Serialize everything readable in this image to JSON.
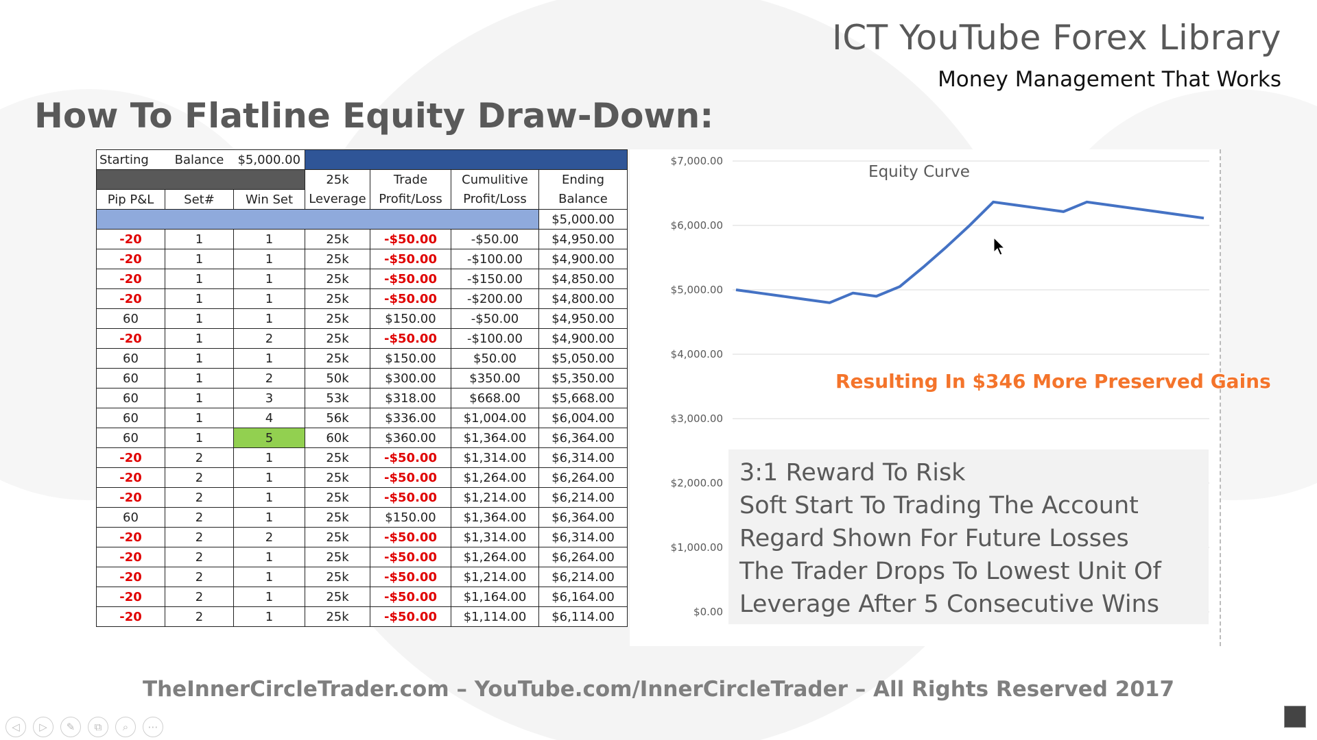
{
  "header": {
    "brand_title": "ICT YouTube Forex Library",
    "brand_subtitle": "Money Management That Works",
    "slide_title": "How To Flatline Equity Draw-Down:"
  },
  "ledger": {
    "starting_label_1": "Starting",
    "starting_label_2": "Balance",
    "starting_value": "$5,000.00",
    "columns": {
      "c1": "Pip P&L",
      "c2": "Set#",
      "c3": "Win Set",
      "c4a": "25k",
      "c4b": "Leverage",
      "c5a": "Trade",
      "c5b": "Profit/Loss",
      "c6a": "Cumulitive",
      "c6b": "Profit/Loss",
      "c7a": "Ending",
      "c7b": "Balance"
    },
    "opening_balance": "$5,000.00",
    "rows": [
      [
        "-20",
        "1",
        "1",
        "25k",
        "-$50.00",
        "-$50.00",
        "$4,950.00"
      ],
      [
        "-20",
        "1",
        "1",
        "25k",
        "-$50.00",
        "-$100.00",
        "$4,900.00"
      ],
      [
        "-20",
        "1",
        "1",
        "25k",
        "-$50.00",
        "-$150.00",
        "$4,850.00"
      ],
      [
        "-20",
        "1",
        "1",
        "25k",
        "-$50.00",
        "-$200.00",
        "$4,800.00"
      ],
      [
        "60",
        "1",
        "1",
        "25k",
        "$150.00",
        "-$50.00",
        "$4,950.00"
      ],
      [
        "-20",
        "1",
        "2",
        "25k",
        "-$50.00",
        "-$100.00",
        "$4,900.00"
      ],
      [
        "60",
        "1",
        "1",
        "25k",
        "$150.00",
        "$50.00",
        "$5,050.00"
      ],
      [
        "60",
        "1",
        "2",
        "50k",
        "$300.00",
        "$350.00",
        "$5,350.00"
      ],
      [
        "60",
        "1",
        "3",
        "53k",
        "$318.00",
        "$668.00",
        "$5,668.00"
      ],
      [
        "60",
        "1",
        "4",
        "56k",
        "$336.00",
        "$1,004.00",
        "$6,004.00"
      ],
      [
        "60",
        "1",
        "5",
        "60k",
        "$360.00",
        "$1,364.00",
        "$6,364.00"
      ],
      [
        "-20",
        "2",
        "1",
        "25k",
        "-$50.00",
        "$1,314.00",
        "$6,314.00"
      ],
      [
        "-20",
        "2",
        "1",
        "25k",
        "-$50.00",
        "$1,264.00",
        "$6,264.00"
      ],
      [
        "-20",
        "2",
        "1",
        "25k",
        "-$50.00",
        "$1,214.00",
        "$6,214.00"
      ],
      [
        "60",
        "2",
        "1",
        "25k",
        "$150.00",
        "$1,364.00",
        "$6,364.00"
      ],
      [
        "-20",
        "2",
        "2",
        "25k",
        "-$50.00",
        "$1,314.00",
        "$6,314.00"
      ],
      [
        "-20",
        "2",
        "1",
        "25k",
        "-$50.00",
        "$1,264.00",
        "$6,264.00"
      ],
      [
        "-20",
        "2",
        "1",
        "25k",
        "-$50.00",
        "$1,214.00",
        "$6,214.00"
      ],
      [
        "-20",
        "2",
        "1",
        "25k",
        "-$50.00",
        "$1,164.00",
        "$6,164.00"
      ],
      [
        "-20",
        "2",
        "1",
        "25k",
        "-$50.00",
        "$1,114.00",
        "$6,114.00"
      ]
    ],
    "highlight_win_row": 10,
    "colors": {
      "negative": "#e00000",
      "highlight": "#92d050",
      "header_blue": "#2f5597",
      "row_blue": "#8faadc"
    }
  },
  "chart_data": {
    "type": "line",
    "title": "Equity Curve",
    "y_ticks": [
      "$7,000.00",
      "$6,000.00",
      "$5,000.00",
      "$4,000.00",
      "$3,000.00",
      "$2,000.00",
      "$1,000.00",
      "$0.00"
    ],
    "ylim": [
      0,
      7000
    ],
    "series": [
      {
        "values": [
          5000,
          4950,
          4900,
          4850,
          4800,
          4950,
          4900,
          5050,
          5350,
          5668,
          6004,
          6364,
          6314,
          6264,
          6214,
          6364,
          6314,
          6264,
          6214,
          6164,
          6114
        ],
        "color": "#4472c4"
      }
    ],
    "grid": true
  },
  "callout": "Resulting In $346 More Preserved Gains",
  "notes": [
    "3:1 Reward To Risk",
    "Soft Start To Trading The Account",
    "Regard Shown For Future Losses",
    "The Trader Drops To Lowest Unit Of",
    "Leverage After 5 Consecutive Wins"
  ],
  "footer": "TheInnerCircleTrader.com – YouTube.com/InnerCircleTrader – All Rights Reserved 2017",
  "player_controls": [
    "◁",
    "▷",
    "✎",
    "⧉",
    "⌕",
    "⋯"
  ]
}
